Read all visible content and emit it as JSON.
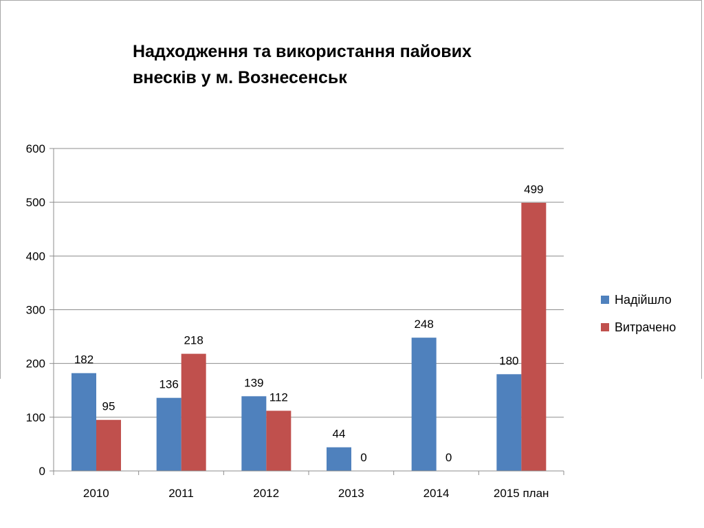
{
  "chart_data": {
    "type": "bar",
    "title": "Надходження та використання пайових внесків у м. Вознесенськ",
    "title_lines": [
      "Надходження та використання пайових",
      "внесків у м. Вознесенськ"
    ],
    "categories": [
      "2010",
      "2011",
      "2012",
      "2013",
      "2014",
      "2015 план"
    ],
    "series": [
      {
        "name": "Надійшло",
        "values": [
          182,
          136,
          139,
          44,
          248,
          180
        ],
        "color": "#4f81bd"
      },
      {
        "name": "Витрачено",
        "values": [
          95,
          218,
          112,
          0,
          0,
          499
        ],
        "color": "#c0504d"
      }
    ],
    "ylim": [
      0,
      600
    ],
    "yticks": [
      0,
      100,
      200,
      300,
      400,
      500,
      600
    ],
    "grid": true,
    "legend_position": "right",
    "data_labels": true,
    "xlabel": "",
    "ylabel": ""
  }
}
